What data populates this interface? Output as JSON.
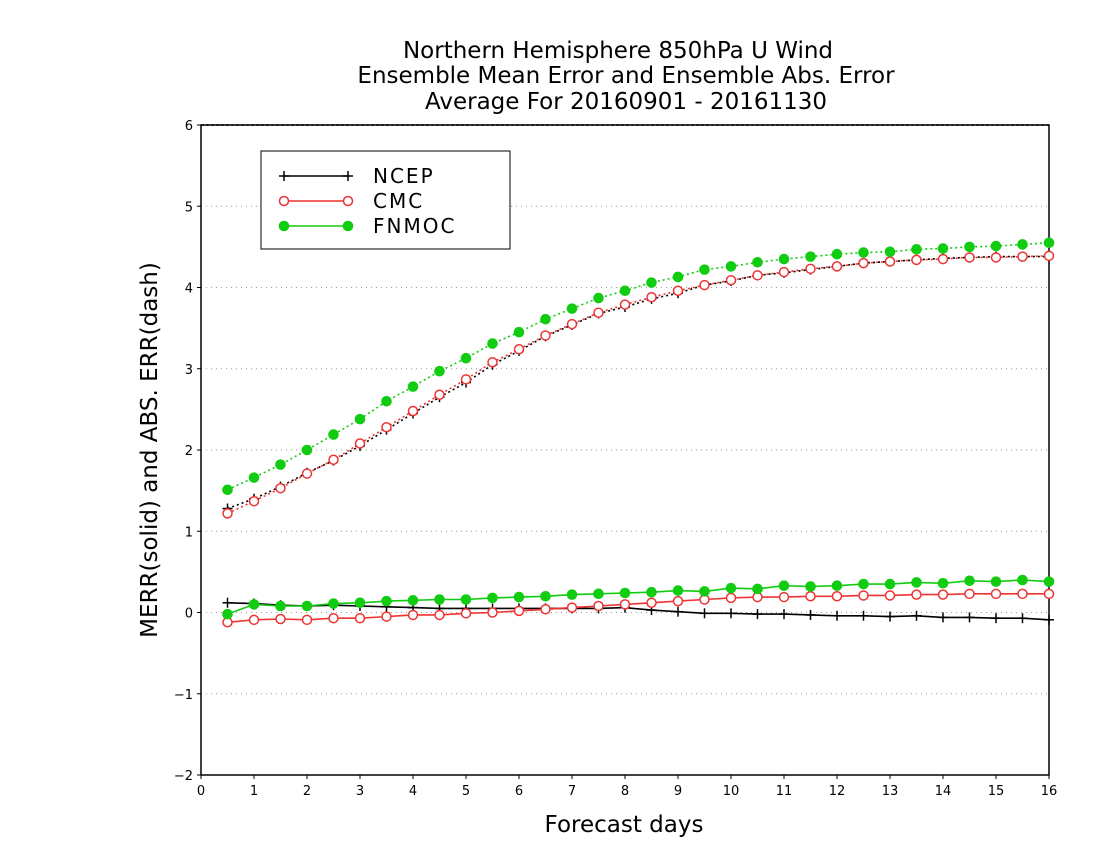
{
  "chart_data": {
    "type": "line",
    "title": [
      "Northern Hemisphere 850hPa U Wind",
      "Ensemble Mean Error and Ensemble Abs. Error",
      "Average For 20160901 - 20161130"
    ],
    "xlabel": "Forecast days",
    "ylabel": "MERR(solid) and ABS. ERR(dash)",
    "xlim": [
      0,
      16
    ],
    "ylim": [
      -2,
      6
    ],
    "xticks": [
      "0",
      "1",
      "2",
      "3",
      "4",
      "5",
      "6",
      "7",
      "8",
      "9",
      "10",
      "11",
      "12",
      "13",
      "14",
      "15",
      "16"
    ],
    "yticks": [
      "-2",
      "-1",
      "0",
      "1",
      "2",
      "3",
      "4",
      "5",
      "6"
    ],
    "grid": "horizontal-dotted",
    "legend_position": "top-left",
    "x": [
      0.5,
      1,
      1.5,
      2,
      2.5,
      3,
      3.5,
      4,
      4.5,
      5,
      5.5,
      6,
      6.5,
      7,
      7.5,
      8,
      8.5,
      9,
      9.5,
      10,
      10.5,
      11,
      11.5,
      12,
      12.5,
      13,
      13.5,
      14,
      14.5,
      15,
      15.5,
      16
    ],
    "series": [
      {
        "name": "NCEP",
        "color": "#000000",
        "marker": "plus",
        "merr": [
          0.12,
          0.11,
          0.09,
          0.08,
          0.09,
          0.08,
          0.07,
          0.06,
          0.05,
          0.05,
          0.05,
          0.05,
          0.05,
          0.05,
          0.05,
          0.06,
          0.03,
          0.01,
          -0.01,
          -0.01,
          -0.02,
          -0.02,
          -0.03,
          -0.04,
          -0.04,
          -0.05,
          -0.04,
          -0.06,
          -0.06,
          -0.07,
          -0.07,
          -0.09
        ],
        "abs_err": [
          1.28,
          1.4,
          1.55,
          1.72,
          1.87,
          2.05,
          2.25,
          2.45,
          2.65,
          2.83,
          3.05,
          3.22,
          3.4,
          3.54,
          3.68,
          3.76,
          3.86,
          3.93,
          4.03,
          4.08,
          4.15,
          4.18,
          4.22,
          4.26,
          4.3,
          4.32,
          4.34,
          4.36,
          4.37,
          4.38,
          4.38,
          4.38
        ]
      },
      {
        "name": "CMC",
        "color": "#ee3333",
        "marker": "open-circle",
        "merr": [
          -0.12,
          -0.09,
          -0.08,
          -0.09,
          -0.07,
          -0.07,
          -0.05,
          -0.03,
          -0.03,
          -0.01,
          0.0,
          0.02,
          0.04,
          0.06,
          0.08,
          0.1,
          0.12,
          0.14,
          0.16,
          0.18,
          0.19,
          0.19,
          0.2,
          0.2,
          0.21,
          0.21,
          0.22,
          0.22,
          0.23,
          0.23,
          0.23,
          0.23
        ],
        "abs_err": [
          1.22,
          1.37,
          1.53,
          1.71,
          1.88,
          2.08,
          2.28,
          2.48,
          2.68,
          2.87,
          3.08,
          3.24,
          3.41,
          3.55,
          3.69,
          3.79,
          3.88,
          3.96,
          4.03,
          4.09,
          4.15,
          4.19,
          4.23,
          4.26,
          4.3,
          4.32,
          4.34,
          4.35,
          4.37,
          4.37,
          4.38,
          4.39
        ]
      },
      {
        "name": "FNMOC",
        "color": "#11cc11",
        "marker": "filled-circle",
        "merr": [
          -0.02,
          0.1,
          0.08,
          0.08,
          0.11,
          0.12,
          0.14,
          0.15,
          0.16,
          0.16,
          0.18,
          0.19,
          0.2,
          0.22,
          0.23,
          0.24,
          0.25,
          0.27,
          0.26,
          0.3,
          0.29,
          0.33,
          0.32,
          0.33,
          0.35,
          0.35,
          0.37,
          0.36,
          0.39,
          0.38,
          0.4,
          0.38
        ],
        "abs_err": [
          1.51,
          1.66,
          1.82,
          2.0,
          2.19,
          2.38,
          2.6,
          2.78,
          2.97,
          3.13,
          3.31,
          3.45,
          3.61,
          3.74,
          3.87,
          3.96,
          4.06,
          4.13,
          4.22,
          4.26,
          4.31,
          4.35,
          4.38,
          4.41,
          4.43,
          4.44,
          4.47,
          4.48,
          4.5,
          4.51,
          4.53,
          4.55
        ]
      }
    ]
  }
}
